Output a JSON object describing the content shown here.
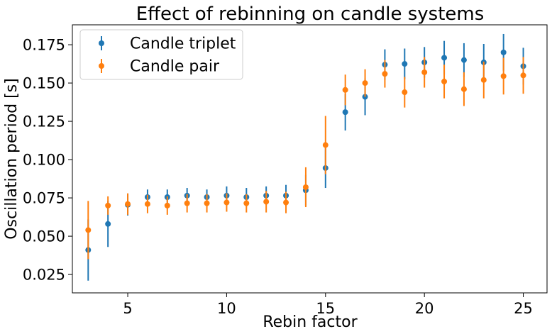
{
  "chart_data": {
    "type": "scatter",
    "title": "Effect of rebinning on candle systems",
    "xlabel": "Rebin factor",
    "ylabel": "Oscillation period [s]",
    "xlim": [
      2.2,
      26.2
    ],
    "ylim": [
      0.013,
      0.188
    ],
    "xticks": [
      5,
      10,
      15,
      20,
      25
    ],
    "yticks": [
      0.025,
      0.05,
      0.075,
      0.1,
      0.125,
      0.15,
      0.175
    ],
    "ytick_labels": [
      "0.025",
      "0.050",
      "0.075",
      "0.100",
      "0.125",
      "0.150",
      "0.175"
    ],
    "grid": false,
    "legend_position": "top-left",
    "x": [
      3,
      4,
      5,
      6,
      7,
      8,
      9,
      10,
      11,
      12,
      13,
      14,
      15,
      16,
      17,
      18,
      19,
      20,
      21,
      22,
      23,
      24,
      25
    ],
    "series": [
      {
        "name": "Candle triplet",
        "color": "#1f77b4",
        "values": [
          0.041,
          0.058,
          0.0705,
          0.0755,
          0.0755,
          0.0765,
          0.0755,
          0.0765,
          0.0755,
          0.0765,
          0.0765,
          0.08,
          0.0945,
          0.131,
          0.141,
          0.162,
          0.1625,
          0.1635,
          0.1665,
          0.165,
          0.1635,
          0.17,
          0.161
        ],
        "errors": [
          0.02,
          0.015,
          0.007,
          0.005,
          0.005,
          0.005,
          0.005,
          0.006,
          0.006,
          0.006,
          0.007,
          0.01,
          0.013,
          0.012,
          0.012,
          0.01,
          0.01,
          0.01,
          0.011,
          0.011,
          0.012,
          0.012,
          0.012
        ]
      },
      {
        "name": "Candle pair",
        "color": "#ff7f0e",
        "values": [
          0.054,
          0.07,
          0.071,
          0.071,
          0.07,
          0.0715,
          0.0715,
          0.072,
          0.0715,
          0.0725,
          0.072,
          0.082,
          0.1095,
          0.1455,
          0.15,
          0.156,
          0.144,
          0.157,
          0.151,
          0.146,
          0.152,
          0.1545,
          0.155
        ],
        "errors": [
          0.019,
          0.006,
          0.007,
          0.006,
          0.006,
          0.006,
          0.006,
          0.006,
          0.006,
          0.007,
          0.007,
          0.013,
          0.019,
          0.01,
          0.009,
          0.009,
          0.01,
          0.01,
          0.011,
          0.011,
          0.012,
          0.012,
          0.012
        ]
      }
    ]
  }
}
